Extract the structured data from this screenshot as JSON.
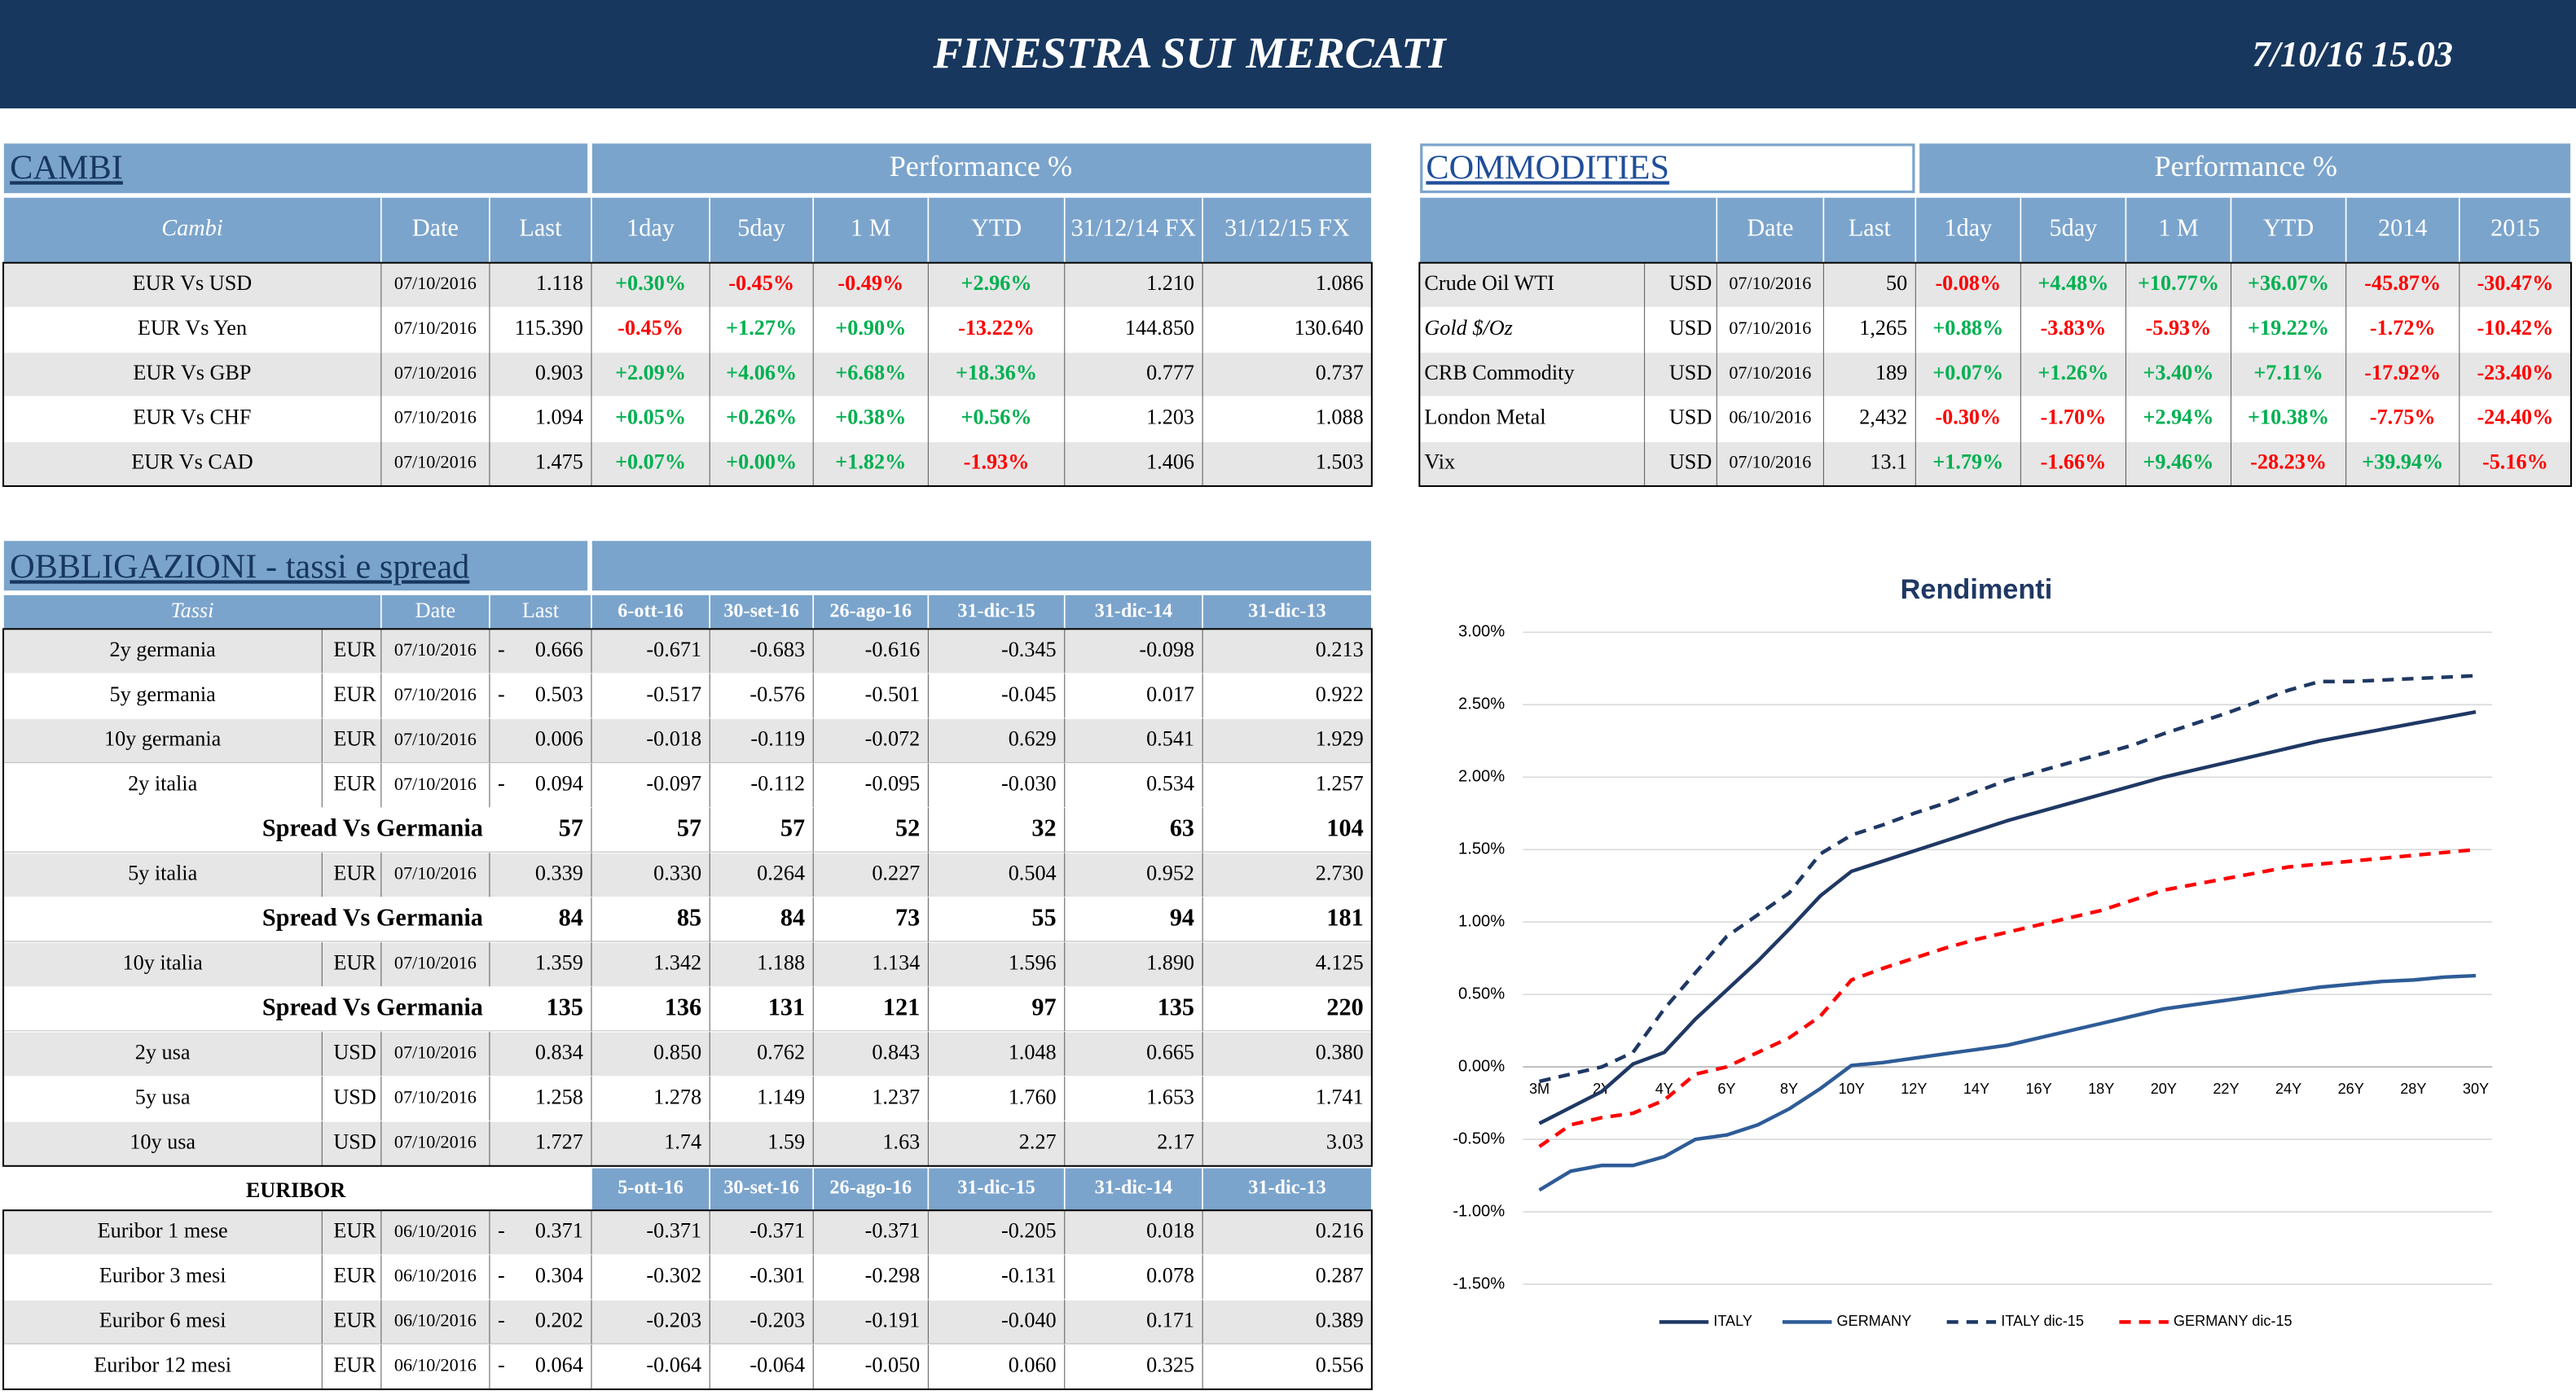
{
  "header": {
    "title": "FINESTRA SUI MERCATI",
    "datetime": "7/10/16 15.03"
  },
  "cambi": {
    "title": "CAMBI",
    "performance": "Performance  %",
    "headers": [
      "Cambi",
      "Date",
      "Last",
      "1day",
      "5day",
      "1 M",
      "YTD",
      "31/12/14 FX",
      "31/12/15  FX"
    ],
    "rows": [
      [
        "EUR Vs USD",
        "07/10/2016",
        "1.118",
        "+0.30%",
        "-0.45%",
        "-0.49%",
        "+2.96%",
        "1.210",
        "1.086"
      ],
      [
        "EUR Vs Yen",
        "07/10/2016",
        "115.390",
        "-0.45%",
        "+1.27%",
        "+0.90%",
        "-13.22%",
        "144.850",
        "130.640"
      ],
      [
        "EUR Vs GBP",
        "07/10/2016",
        "0.903",
        "+2.09%",
        "+4.06%",
        "+6.68%",
        "+18.36%",
        "0.777",
        "0.737"
      ],
      [
        "EUR Vs CHF",
        "07/10/2016",
        "1.094",
        "+0.05%",
        "+0.26%",
        "+0.38%",
        "+0.56%",
        "1.203",
        "1.088"
      ],
      [
        "EUR Vs CAD",
        "07/10/2016",
        "1.475",
        "+0.07%",
        "+0.00%",
        "+1.82%",
        "-1.93%",
        "1.406",
        "1.503"
      ]
    ]
  },
  "commodities": {
    "title": "COMMODITIES",
    "performance": "Performance  %",
    "headers": [
      "Date",
      "Last",
      "1day",
      "5day",
      "1 M",
      "YTD",
      "2014",
      "2015"
    ],
    "rows": [
      [
        "Crude Oil WTI",
        "USD",
        "07/10/2016",
        "50",
        "-0.08%",
        "+4.48%",
        "+10.77%",
        "+36.07%",
        "-45.87%",
        "-30.47%"
      ],
      [
        "Gold $/Oz",
        "USD",
        "07/10/2016",
        "1,265",
        "+0.88%",
        "-3.83%",
        "-5.93%",
        "+19.22%",
        "-1.72%",
        "-10.42%"
      ],
      [
        "CRB Commodity",
        "USD",
        "07/10/2016",
        "189",
        "+0.07%",
        "+1.26%",
        "+3.40%",
        "+7.11%",
        "-17.92%",
        "-23.40%"
      ],
      [
        "London Metal",
        "USD",
        "06/10/2016",
        "2,432",
        "-0.30%",
        "-1.70%",
        "+2.94%",
        "+10.38%",
        "-7.75%",
        "-24.40%"
      ],
      [
        "Vix",
        "USD",
        "07/10/2016",
        "13.1",
        "+1.79%",
        "-1.66%",
        "+9.46%",
        "-28.23%",
        "+39.94%",
        "-5.16%"
      ]
    ]
  },
  "bonds": {
    "title": "OBBLIGAZIONI - tassi e spread",
    "headers": [
      "Tassi",
      "Date",
      "Last",
      "6-ott-16",
      "30-set-16",
      "26-ago-16",
      "31-dic-15",
      "31-dic-14",
      "31-dic-13"
    ],
    "rows": [
      {
        "name": "2y germania",
        "currency": "EUR",
        "date": "07/10/2016",
        "dash": "-",
        "last": "0.666",
        "values": [
          "-0.671",
          "-0.683",
          "-0.616",
          "-0.345",
          "-0.098",
          "0.213"
        ]
      },
      {
        "name": "5y germania",
        "currency": "EUR",
        "date": "07/10/2016",
        "dash": "-",
        "last": "0.503",
        "values": [
          "-0.517",
          "-0.576",
          "-0.501",
          "-0.045",
          "0.017",
          "0.922"
        ]
      },
      {
        "name": "10y germania",
        "currency": "EUR",
        "date": "07/10/2016",
        "last": "0.006",
        "values": [
          "-0.018",
          "-0.119",
          "-0.072",
          "0.629",
          "0.541",
          "1.929"
        ]
      },
      {
        "name": "2y italia",
        "currency": "EUR",
        "date": "07/10/2016",
        "dash": "-",
        "last": "0.094",
        "values": [
          "-0.097",
          "-0.112",
          "-0.095",
          "-0.030",
          "0.534",
          "1.257"
        ]
      },
      {
        "name": "Spread Vs Germania",
        "last": "57",
        "values": [
          "57",
          "57",
          "52",
          "32",
          "63",
          "104"
        ]
      },
      {
        "name": "5y italia",
        "currency": "EUR",
        "date": "07/10/2016",
        "last": "0.339",
        "values": [
          "0.330",
          "0.264",
          "0.227",
          "0.504",
          "0.952",
          "2.730"
        ]
      },
      {
        "name": "Spread Vs Germania",
        "last": "84",
        "values": [
          "85",
          "84",
          "73",
          "55",
          "94",
          "181"
        ]
      },
      {
        "name": "10y italia",
        "currency": "EUR",
        "date": "07/10/2016",
        "last": "1.359",
        "values": [
          "1.342",
          "1.188",
          "1.134",
          "1.596",
          "1.890",
          "4.125"
        ]
      },
      {
        "name": "Spread Vs Germania",
        "last": "135",
        "values": [
          "136",
          "131",
          "121",
          "97",
          "135",
          "220"
        ]
      },
      {
        "name": "2y usa",
        "currency": "USD",
        "date": "07/10/2016",
        "last": "0.834",
        "values": [
          "0.850",
          "0.762",
          "0.843",
          "1.048",
          "0.665",
          "0.380"
        ]
      },
      {
        "name": "5y usa",
        "currency": "USD",
        "date": "07/10/2016",
        "last": "1.258",
        "values": [
          "1.278",
          "1.149",
          "1.237",
          "1.760",
          "1.653",
          "1.741"
        ]
      },
      {
        "name": "10y usa",
        "currency": "USD",
        "date": "07/10/2016",
        "last": "1.727",
        "values": [
          "1.74",
          "1.59",
          "1.63",
          "2.27",
          "2.17",
          "3.03"
        ]
      }
    ]
  },
  "euribor": {
    "title": "EURIBOR",
    "headers": [
      "5-ott-16",
      "30-set-16",
      "26-ago-16",
      "31-dic-15",
      "31-dic-14",
      "31-dic-13"
    ],
    "rows": [
      {
        "name": "Euribor 1 mese",
        "currency": "EUR",
        "date": "06/10/2016",
        "dash": "-",
        "last": "0.371",
        "values": [
          "-0.371",
          "-0.371",
          "-0.371",
          "-0.205",
          "0.018",
          "0.216"
        ]
      },
      {
        "name": "Euribor 3 mesi",
        "currency": "EUR",
        "date": "06/10/2016",
        "dash": "-",
        "last": "0.304",
        "values": [
          "-0.302",
          "-0.301",
          "-0.298",
          "-0.131",
          "0.078",
          "0.287"
        ]
      },
      {
        "name": "Euribor 6 mesi",
        "currency": "EUR",
        "date": "06/10/2016",
        "dash": "-",
        "last": "0.202",
        "values": [
          "-0.203",
          "-0.203",
          "-0.191",
          "-0.040",
          "0.171",
          "0.389"
        ]
      },
      {
        "name": "Euribor 12 mesi",
        "currency": "EUR",
        "date": "06/10/2016",
        "dash": "-",
        "last": "0.064",
        "values": [
          "-0.064",
          "-0.064",
          "-0.050",
          "0.060",
          "0.325",
          "0.556"
        ]
      }
    ]
  },
  "chart_data": {
    "type": "line",
    "title": "Rendimenti",
    "categories": [
      "3M",
      null,
      "2Y",
      null,
      "4Y",
      null,
      "6Y",
      null,
      "8Y",
      null,
      "10Y",
      null,
      "12Y",
      null,
      "14Y",
      null,
      "16Y",
      null,
      "18Y",
      null,
      "20Y",
      null,
      "22Y",
      null,
      "24Y",
      null,
      "26Y",
      null,
      "28Y",
      null,
      "30Y"
    ],
    "ylim": [
      -1.5,
      3.0
    ],
    "yticks": [
      {
        "value": -1.5,
        "label": "-1.50%"
      },
      {
        "value": -1.0,
        "label": "-1.00%"
      },
      {
        "value": -0.5,
        "label": "-0.50%"
      },
      {
        "value": 0,
        "label": "0.00%"
      },
      {
        "value": 0.5,
        "label": "0.50%"
      },
      {
        "value": 1.0,
        "label": "1.00%"
      },
      {
        "value": 1.5,
        "label": "1.50%"
      },
      {
        "value": 2.0,
        "label": "2.00%"
      },
      {
        "value": 2.5,
        "label": "2.50%"
      },
      {
        "value": 3.0,
        "label": "3.00%"
      }
    ],
    "grid": true,
    "legend": "bottom",
    "series": [
      {
        "name": "ITALY",
        "color": "#1f3864",
        "dashed": false,
        "values": [
          -0.39,
          -0.28,
          -0.17,
          0.02,
          0.1,
          0.33,
          0.53,
          0.73,
          0.95,
          1.18,
          1.35,
          1.42,
          1.49,
          1.56,
          1.63,
          1.7,
          1.76,
          1.82,
          1.88,
          1.94,
          2.0,
          2.05,
          2.1,
          2.15,
          2.2,
          2.25,
          2.29,
          2.33,
          2.37,
          2.41,
          2.45
        ]
      },
      {
        "name": "GERMANY",
        "color": "#2e5c97",
        "dashed": false,
        "values": [
          -0.85,
          -0.72,
          -0.68,
          -0.68,
          -0.62,
          -0.5,
          -0.47,
          -0.4,
          -0.29,
          -0.15,
          0.01,
          0.03,
          0.06,
          0.09,
          0.12,
          0.15,
          0.2,
          0.25,
          0.3,
          0.35,
          0.4,
          0.43,
          0.46,
          0.49,
          0.52,
          0.55,
          0.57,
          0.59,
          0.6,
          0.62,
          0.63
        ]
      },
      {
        "name": "ITALY dic-15",
        "color": "#1f3864",
        "dashed": true,
        "values": [
          -0.1,
          -0.05,
          0.0,
          0.1,
          0.4,
          0.65,
          0.9,
          1.05,
          1.2,
          1.47,
          1.6,
          1.67,
          1.75,
          1.82,
          1.9,
          1.98,
          2.04,
          2.1,
          2.16,
          2.22,
          2.3,
          2.37,
          2.44,
          2.52,
          2.6,
          2.66,
          2.66,
          2.67,
          2.68,
          2.69,
          2.7
        ]
      },
      {
        "name": "GERMANY dic-15",
        "color": "#ff0000",
        "dashed": true,
        "values": [
          -0.55,
          -0.4,
          -0.35,
          -0.32,
          -0.23,
          -0.05,
          0.0,
          0.1,
          0.2,
          0.35,
          0.6,
          0.68,
          0.75,
          0.82,
          0.88,
          0.93,
          0.98,
          1.03,
          1.08,
          1.15,
          1.22,
          1.26,
          1.3,
          1.34,
          1.38,
          1.4,
          1.42,
          1.44,
          1.46,
          1.48,
          1.5
        ]
      }
    ]
  }
}
